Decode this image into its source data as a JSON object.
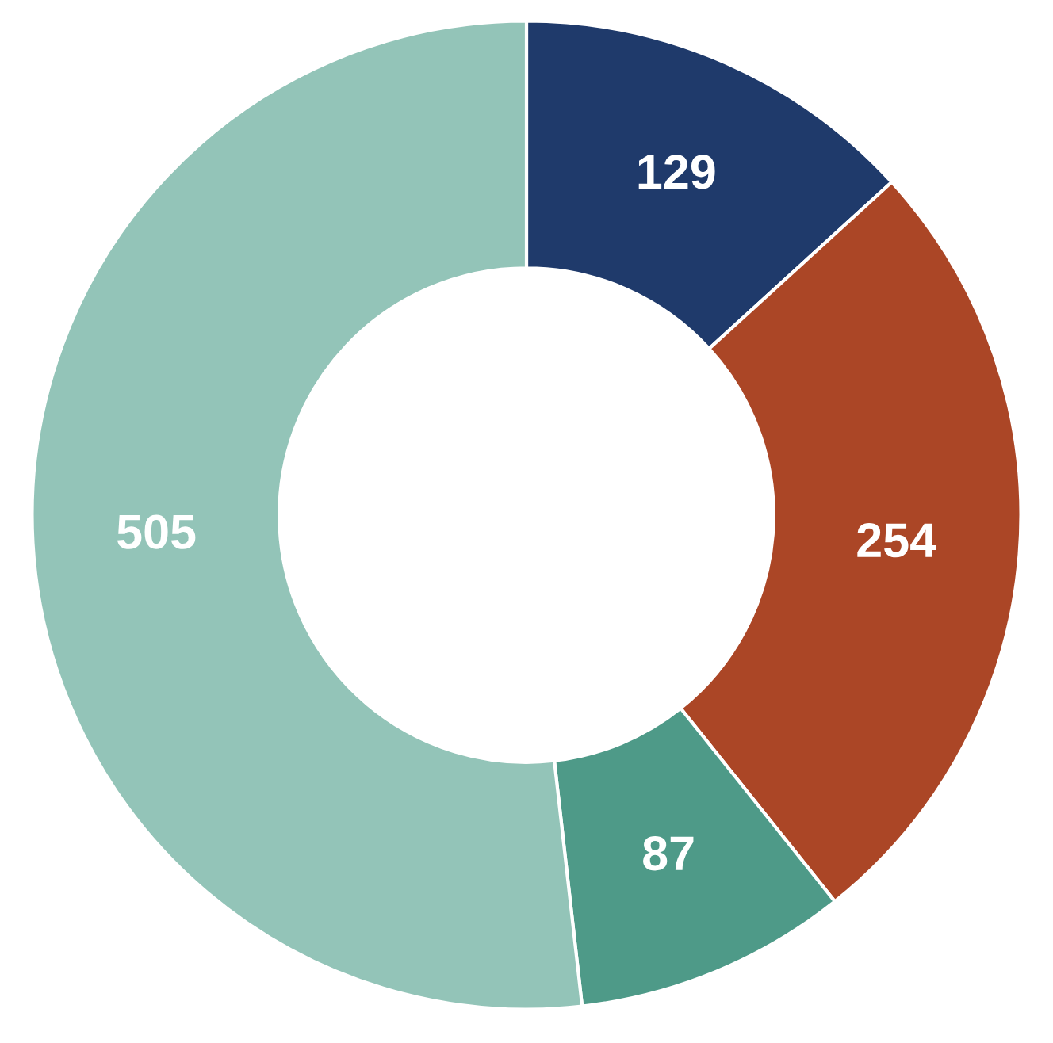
{
  "chart_data": {
    "type": "donut",
    "categories": [
      null,
      null,
      null,
      null
    ],
    "values": [
      129,
      254,
      87,
      505
    ],
    "colors": [
      "#1f3a6b",
      "#ab4626",
      "#4e9a88",
      "#93c4b8"
    ],
    "data_labels": true
  }
}
